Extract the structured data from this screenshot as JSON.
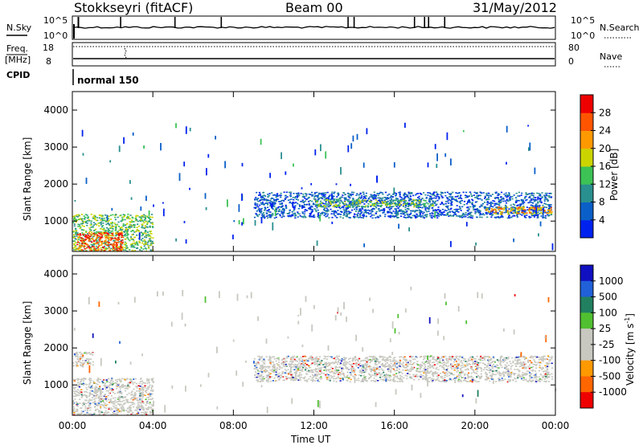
{
  "header": {
    "station": "Stokkseyri (fitACF)",
    "beam": "Beam 00",
    "date": "31/May/2012"
  },
  "noise_panel": {
    "left_label": "N.Sky",
    "right_label": "N.Search",
    "left_ticks": [
      "10^5",
      "10^0"
    ],
    "right_ticks": [
      "10^5",
      "10^0"
    ]
  },
  "freq_panel": {
    "left_label_1": "Freq.",
    "left_label_2": "[MHz]",
    "left_label_3": "CPID",
    "right_label": "Nave",
    "left_ticks": [
      "18",
      "8"
    ],
    "right_ticks": [
      "80",
      "0"
    ],
    "cpid_text": "normal 150"
  },
  "colors": {
    "power": [
      "#0022ee",
      "#0b5fc8",
      "#2a8f8f",
      "#3cc255",
      "#ccd400",
      "#ff9900",
      "#ff5500",
      "#ee0000"
    ],
    "velocity": [
      "#1010c0",
      "#2060d8",
      "#208060",
      "#50c030",
      "#c8c8c0",
      "#c8c8c0",
      "#ff9900",
      "#ff6600",
      "#ee0000"
    ],
    "ground": "#c8c8c0"
  },
  "chart_data": [
    {
      "type": "heatmap",
      "name": "Power",
      "ylabel": "Slant Range [km]",
      "yticks": [
        "1000",
        "2000",
        "3000",
        "4000"
      ],
      "ylim": [
        180,
        4500
      ],
      "colorbar_label": "Power [dB]",
      "colorbar_ticks": [
        "4",
        "8",
        "12",
        "16",
        "20",
        "24",
        "28"
      ],
      "colorbar_range": [
        0,
        32
      ],
      "xlim_hours": [
        0,
        24
      ],
      "regions": [
        {
          "t": [
            0.0,
            4.0
          ],
          "r": [
            200,
            1200
          ],
          "level": 3
        },
        {
          "t": [
            0.2,
            2.5
          ],
          "r": [
            200,
            700
          ],
          "level": 6
        },
        {
          "t": [
            9.0,
            23.8
          ],
          "r": [
            1100,
            1800
          ],
          "level": 1
        },
        {
          "t": [
            12.0,
            18.0
          ],
          "r": [
            1400,
            1600
          ],
          "level": 3
        },
        {
          "t": [
            20.5,
            23.8
          ],
          "r": [
            1200,
            1400
          ],
          "level": 5
        }
      ]
    },
    {
      "type": "heatmap",
      "name": "Velocity",
      "ylabel": "Slant Range [km]",
      "yticks": [
        "1000",
        "2000",
        "3000",
        "4000"
      ],
      "ylim": [
        180,
        4500
      ],
      "colorbar_label": "Velocity [m s^-1]",
      "colorbar_ticks": [
        "1000",
        "500",
        "100",
        "25",
        "-25",
        "-100",
        "-500",
        "-1000"
      ],
      "xlim_hours": [
        0,
        24
      ],
      "regions": [
        {
          "t": [
            0.0,
            4.0
          ],
          "r": [
            200,
            1200
          ],
          "level": 4
        },
        {
          "t": [
            9.0,
            23.8
          ],
          "r": [
            1100,
            1800
          ],
          "level": 4
        },
        {
          "t": [
            0.0,
            1.0
          ],
          "r": [
            1500,
            1900
          ],
          "level": 6
        }
      ]
    }
  ],
  "xaxis": {
    "label": "Time UT",
    "ticks": [
      "00:00",
      "04:00",
      "08:00",
      "12:00",
      "16:00",
      "20:00",
      "00:00"
    ]
  }
}
